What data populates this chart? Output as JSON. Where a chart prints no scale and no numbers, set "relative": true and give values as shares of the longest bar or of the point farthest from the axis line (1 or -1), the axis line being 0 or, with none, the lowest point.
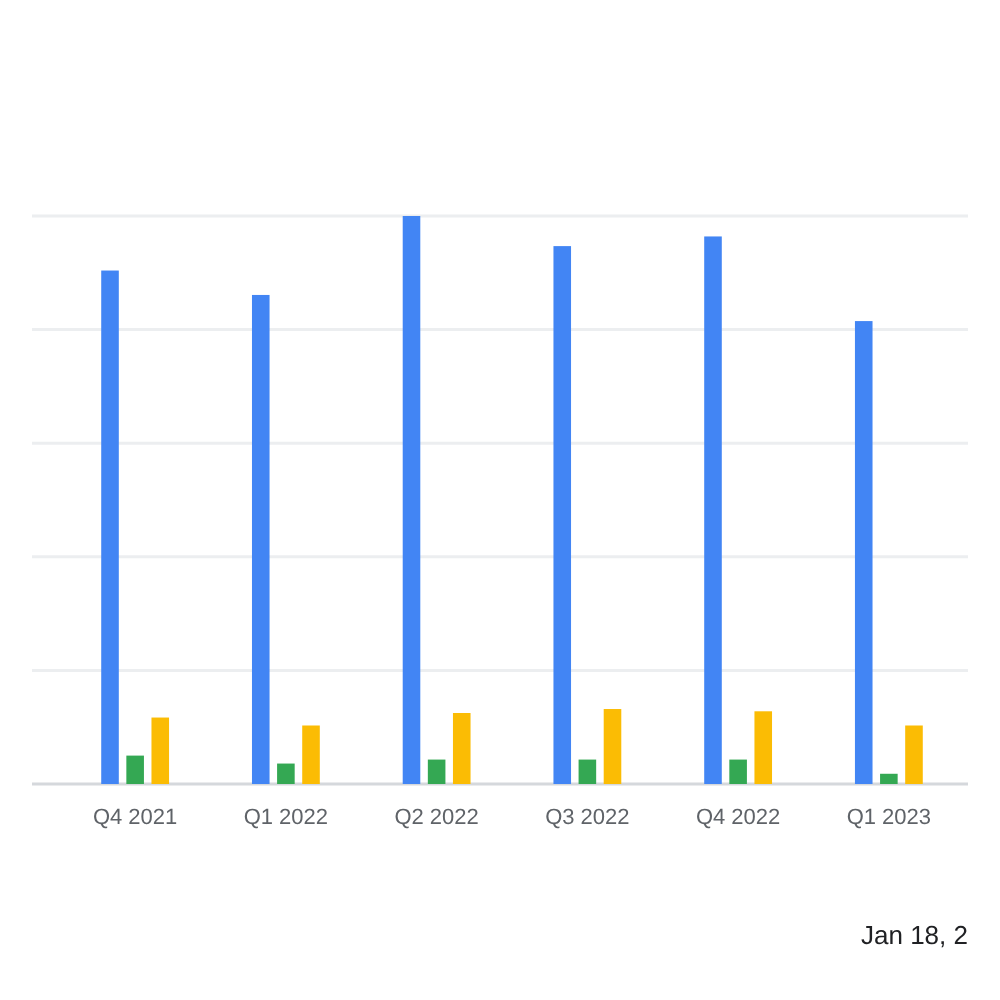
{
  "chart_data": {
    "type": "bar",
    "relative": true,
    "categories": [
      "Q4 2021",
      "Q1 2022",
      "Q2 2022",
      "Q3 2022",
      "Q4 2022",
      "Q1 2023"
    ],
    "series": [
      {
        "color": "#4285f4",
        "values": [
          0.904,
          0.861,
          1,
          0.947,
          0.964,
          0.815
        ]
      },
      {
        "color": "#34a853",
        "values": [
          0.05,
          0.036,
          0.043,
          0.043,
          0.043,
          0.018
        ]
      },
      {
        "color": "#fbbc04",
        "values": [
          0.117,
          0.103,
          0.125,
          0.132,
          0.128,
          0.103
        ]
      }
    ],
    "grid": "y",
    "annotations": [
      "Jan 18, 2"
    ]
  }
}
